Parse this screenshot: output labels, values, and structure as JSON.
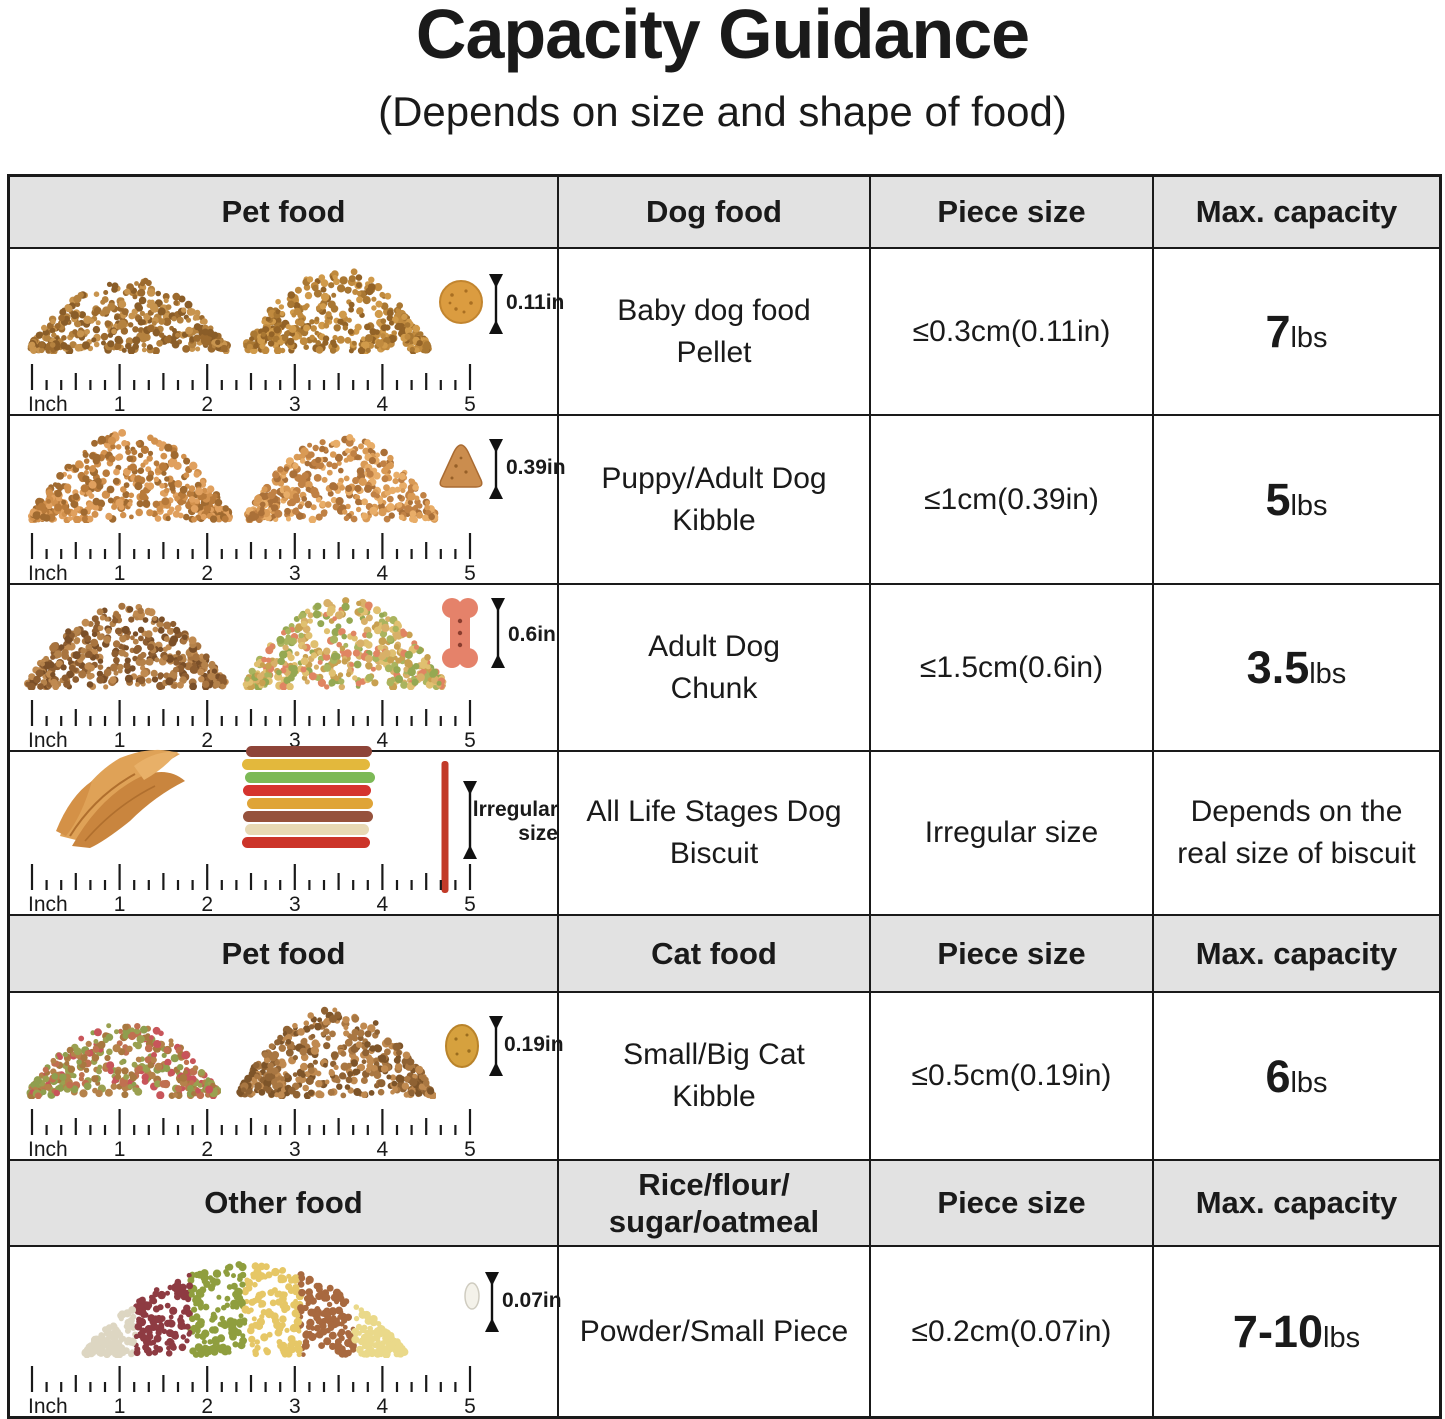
{
  "title": "Capacity Guidance",
  "subtitle": "(Depends on size and shape of food)",
  "ruler": {
    "label": "Inch",
    "numbers": [
      "1",
      "2",
      "3",
      "4",
      "5"
    ]
  },
  "colors": {
    "header_bg": "#e2e2e2",
    "border": "#1a1a1a",
    "text": "#1a1a1a"
  },
  "headers": [
    [
      "Pet food",
      "Dog food",
      "Piece size",
      "Max. capacity"
    ],
    [
      "Pet food",
      "Cat food",
      "Piece size",
      "Max. capacity"
    ],
    [
      "Other food",
      "Rice/flour/\nsugar/oatmeal",
      "Piece size",
      "Max. capacity"
    ]
  ],
  "rows": [
    {
      "name": "Baby dog food\nPellet",
      "piece_size": "≤0.3cm(0.11in)",
      "capacity_value": "7",
      "capacity_unit": "lbs",
      "sample_label": "0.11in",
      "pile_colors": [
        "#b5823f,#9c6a2e,#c8944e,#8a5d28",
        "#c08a3e,#a97732,#d09a4a,#936327"
      ]
    },
    {
      "name": "Puppy/Adult Dog\nKibble",
      "piece_size": "≤1cm(0.39in)",
      "capacity_value": "5",
      "capacity_unit": "lbs",
      "sample_label": "0.39in",
      "pile_colors": [
        "#d2914d,#b87a3a,#e0a05e,#a06a30",
        "#d99a55,#c08144,#e8ad68,#aa7038"
      ]
    },
    {
      "name": "Adult Dog\nChunk",
      "piece_size": "≤1.5cm(0.6in)",
      "capacity_value": "3.5",
      "capacity_unit": "lbs",
      "sample_label": "0.6in",
      "pile_colors": [
        "#a8743f,#8d5d30,#c08a50,#7a4f28,#b5824a",
        "#aab45e,#e0c070,#e08562,#c8a050,#95a852,#d8b068"
      ]
    },
    {
      "name": "All Life Stages Dog\nBiscuit",
      "piece_size": "Irregular size",
      "capacity_note": "Depends on the\nreal size of biscuit",
      "sample_label": "lrregular\nsize",
      "pile_colors": []
    },
    {
      "name": "Small/Big Cat\nKibble",
      "piece_size": "≤0.5cm(0.19in)",
      "capacity_value": "6",
      "capacity_unit": "lbs",
      "sample_label": "0.19in",
      "pile_colors": [
        "#c07050,#9aa050,#a87840,#c8555a,#8f9e4e,#b5824a",
        "#a97742,#8f6233,#c08a50,#7d5429"
      ]
    },
    {
      "name": "Powder/Small Piece",
      "piece_size": "≤0.2cm(0.07in)",
      "capacity_value": "7-10",
      "capacity_unit": "lbs",
      "sample_label": "0.07in",
      "pile_colors": [
        "#ddd6c2,#8e3b42,#8f9e3e,#e6c766,#a8693f,#ead98a"
      ]
    }
  ]
}
